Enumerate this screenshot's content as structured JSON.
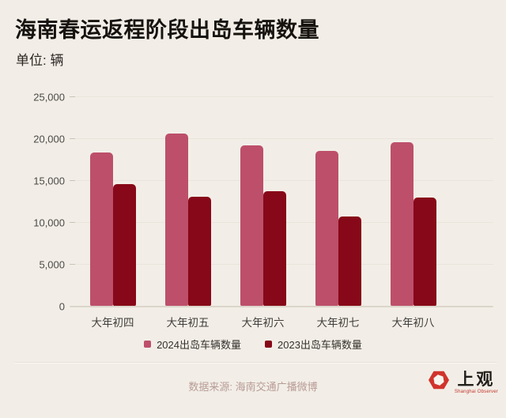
{
  "header": {
    "title": "海南春运返程阶段出岛车辆数量",
    "unit_label": "单位: 辆"
  },
  "colors": {
    "background": "#f2eee7",
    "series_2024": "#bd4f6a",
    "series_2023": "#870818",
    "logo_red": "#d0342c"
  },
  "chart_data": {
    "type": "bar",
    "categories": [
      "大年初四",
      "大年初五",
      "大年初六",
      "大年初七",
      "大年初八"
    ],
    "series": [
      {
        "name": "2024出岛车辆数量",
        "color": "#bd4f6a",
        "values": [
          18400,
          20700,
          19200,
          18600,
          19600
        ]
      },
      {
        "name": "2023出岛车辆数量",
        "color": "#870818",
        "values": [
          14600,
          13100,
          13800,
          10800,
          13000
        ]
      }
    ],
    "title": "海南春运返程阶段出岛车辆数量",
    "xlabel": "",
    "ylabel": "单位: 辆",
    "ylim": [
      0,
      25000
    ],
    "ytick_step": 5000,
    "ytick_labels": [
      "0",
      "5,000",
      "10,000",
      "15,000",
      "20,000",
      "25,000"
    ],
    "grid": true,
    "legend_position": "bottom"
  },
  "footer": {
    "source": "数据来源: 海南交通广播微博",
    "logo_text": "上观",
    "logo_subtext": "Shanghai Observer"
  }
}
